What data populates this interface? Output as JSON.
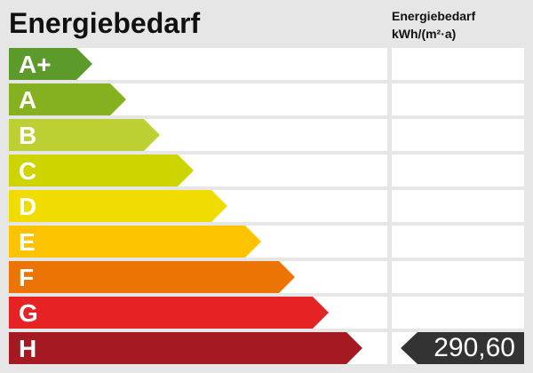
{
  "title": "Energiebedarf",
  "unit_header": {
    "line1": "Energiebedarf",
    "line2": "kWh/(m²·a)"
  },
  "classes": [
    {
      "label": "A+",
      "color": "#5c9a2c"
    },
    {
      "label": "A",
      "color": "#85b01f"
    },
    {
      "label": "B",
      "color": "#bccf33"
    },
    {
      "label": "C",
      "color": "#cdd400"
    },
    {
      "label": "D",
      "color": "#f0dc00"
    },
    {
      "label": "E",
      "color": "#fcc400"
    },
    {
      "label": "F",
      "color": "#ec7404"
    },
    {
      "label": "G",
      "color": "#e52325"
    },
    {
      "label": "H",
      "color": "#a51a22"
    }
  ],
  "value": {
    "text": "290,60",
    "class": "H",
    "color": "#333333"
  }
}
